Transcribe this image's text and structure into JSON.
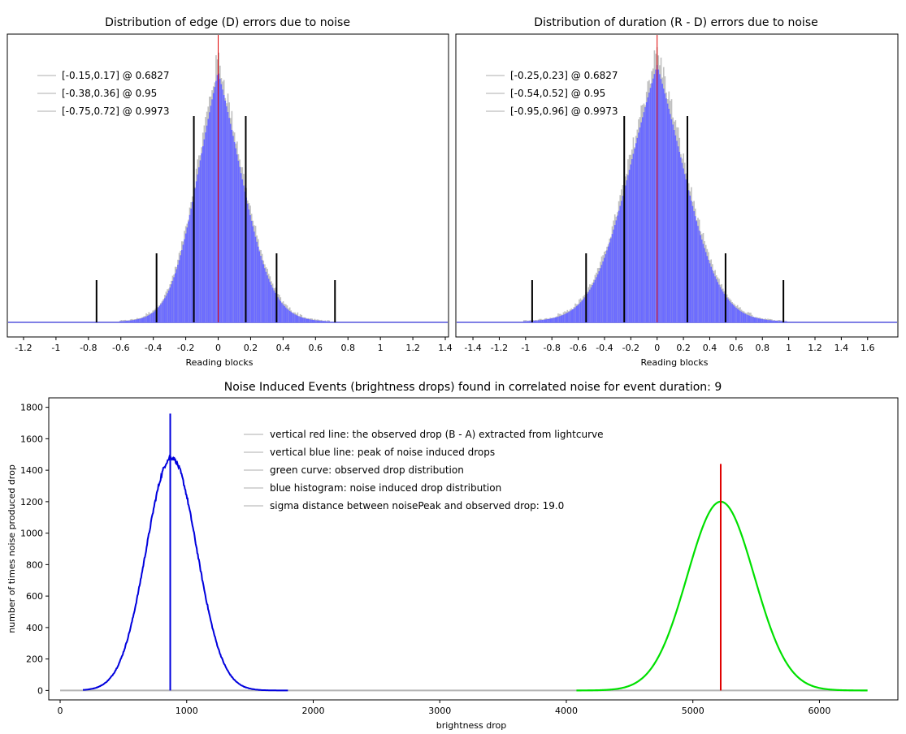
{
  "chart_data": [
    {
      "type": "histogram",
      "title": "Distribution of edge (D) errors due to noise",
      "xlabel": "Reading blocks",
      "ylabel": "",
      "xlim": [
        -1.3,
        1.42
      ],
      "xticks": [
        -1.2,
        -1,
        -0.8,
        -0.6,
        -0.4,
        -0.2,
        0,
        0.2,
        0.4,
        0.6,
        0.8,
        1,
        1.2,
        1.4
      ],
      "xtick_labels": [
        "-1.2",
        "-1",
        "-0.8",
        "-0.6",
        "-0.4",
        "-0.2",
        "0",
        "0.2",
        "0.4",
        "0.6",
        "0.8",
        "1",
        "1.2",
        "1.4"
      ],
      "distribution": {
        "center": 0.0,
        "sigma_left": 0.155,
        "sigma_right": 0.175
      },
      "peak_marker_x": 0,
      "confidence_intervals": [
        {
          "low": -0.15,
          "high": 0.17,
          "level": 0.6827
        },
        {
          "low": -0.38,
          "high": 0.36,
          "level": 0.95
        },
        {
          "low": -0.75,
          "high": 0.72,
          "level": 0.9973
        }
      ],
      "legend": [
        "[-0.15,0.17] @ 0.6827",
        "[-0.38,0.36] @ 0.95",
        "[-0.75,0.72] @ 0.9973"
      ],
      "legend_position": "top-left",
      "colors": {
        "histogram": "#6b6bff",
        "envelope": "#c0c0c0",
        "marker": "#e00000",
        "intervals": "#000000"
      }
    },
    {
      "type": "histogram",
      "title": "Distribution of duration (R - D) errors due to noise",
      "xlabel": "Reading blocks",
      "ylabel": "",
      "xlim": [
        -1.53,
        1.83
      ],
      "xticks": [
        -1.4,
        -1.2,
        -1,
        -0.8,
        -0.6,
        -0.4,
        -0.2,
        0,
        0.2,
        0.4,
        0.6,
        0.8,
        1,
        1.2,
        1.4,
        1.6
      ],
      "xtick_labels": [
        "-1.4",
        "-1.2",
        "-1",
        "-0.8",
        "-0.6",
        "-0.4",
        "-0.2",
        "0",
        "0.2",
        "0.4",
        "0.6",
        "0.8",
        "1",
        "1.2",
        "1.4",
        "1.6"
      ],
      "distribution": {
        "center": 0.0,
        "sigma_left": 0.26,
        "sigma_right": 0.25
      },
      "peak_marker_x": 0,
      "confidence_intervals": [
        {
          "low": -0.25,
          "high": 0.23,
          "level": 0.6827
        },
        {
          "low": -0.54,
          "high": 0.52,
          "level": 0.95
        },
        {
          "low": -0.95,
          "high": 0.96,
          "level": 0.9973
        }
      ],
      "legend": [
        "[-0.25,0.23] @ 0.6827",
        "[-0.54,0.52] @ 0.95",
        "[-0.95,0.96] @ 0.9973"
      ],
      "legend_position": "top-left",
      "colors": {
        "histogram": "#6b6bff",
        "envelope": "#c0c0c0",
        "marker": "#e00000",
        "intervals": "#000000"
      }
    },
    {
      "type": "line",
      "title": "Noise Induced Events (brightness drops) found in correlated noise for event duration: 9",
      "xlabel": "brightness drop",
      "ylabel": "number of times noise produced drop",
      "xlim": [
        -90,
        6620
      ],
      "ylim": [
        -60,
        1860
      ],
      "xticks": [
        0,
        1000,
        2000,
        3000,
        4000,
        5000,
        6000
      ],
      "xtick_labels": [
        "0",
        "1000",
        "2000",
        "3000",
        "4000",
        "5000",
        "6000"
      ],
      "yticks": [
        0,
        200,
        400,
        600,
        800,
        1000,
        1200,
        1400,
        1600,
        1800
      ],
      "ytick_labels": [
        "0",
        "200",
        "400",
        "600",
        "800",
        "1000",
        "1200",
        "1400",
        "1600",
        "1800"
      ],
      "series": [
        {
          "name": "blue histogram: noise induced drop distribution",
          "kind": "histogram",
          "center": 880,
          "sigma": 200,
          "peak": 1480,
          "x_range": [
            180,
            1800
          ],
          "color": "#0000dd"
        },
        {
          "name": "green curve: observed drop distribution",
          "kind": "gaussian",
          "center": 5220,
          "sigma": 265,
          "peak": 1200,
          "x_range": [
            4080,
            6380
          ],
          "color": "#00e000"
        }
      ],
      "baseline": {
        "x_range": [
          0,
          6380
        ],
        "y": 0,
        "color": "#b4b4b4"
      },
      "vertical_lines": [
        {
          "label": "vertical blue line: peak of noise induced drops",
          "x": 870,
          "y_top": 1760,
          "color": "#0000dd"
        },
        {
          "label": "vertical red line: the observed drop (B - A) extracted from lightcurve",
          "x": 5220,
          "y_top": 1440,
          "color": "#e00000"
        }
      ],
      "legend": [
        "vertical red line: the observed drop (B - A) extracted from lightcurve",
        "vertical blue line: peak of noise induced drops",
        "green curve: observed drop distribution",
        "blue histogram: noise induced drop distribution",
        "sigma distance between noisePeak and observed drop: 19.0"
      ],
      "legend_position": "top-center"
    }
  ]
}
